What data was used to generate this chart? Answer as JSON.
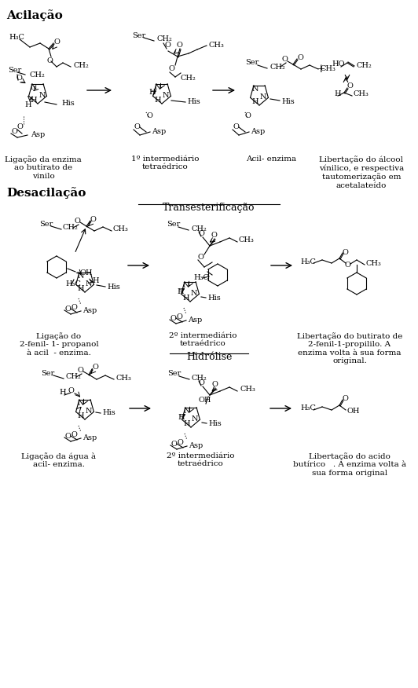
{
  "title": "",
  "background_color": "#ffffff",
  "section1_header": "Acilação",
  "section2_header": "Desacilação",
  "subsection1": "Transesterificação",
  "subsection2": "Hidrólise",
  "labels_acilacao": [
    "Ligação da enzima\nao butirato de\nvinilo",
    "1º intermediário\ntetraédrico",
    "Acil- enzima",
    "Libertação do álcool\nvínilico, e respectiva\ntautomerização em\nacetalateído"
  ],
  "labels_transest": [
    "Ligação do\n2-fenil- 1- propanol\nà acil  - enzima.",
    "2º intermediário\ntetraédrico",
    "Libertação do butirato de\n2-fenil-1-propililo. A\nenzima volta à sua forma\noriginal."
  ],
  "labels_hidrolise": [
    "Ligação da água à\nacil- enzima.",
    "2º intermediário\ntetraédrico",
    "Libertação do acido\nbutírico   . A enzima volta à\nsua forma original"
  ],
  "arrow_color": "#000000",
  "text_color": "#000000",
  "font_size_header": 11,
  "font_size_subheader": 9,
  "font_size_label": 7.5
}
